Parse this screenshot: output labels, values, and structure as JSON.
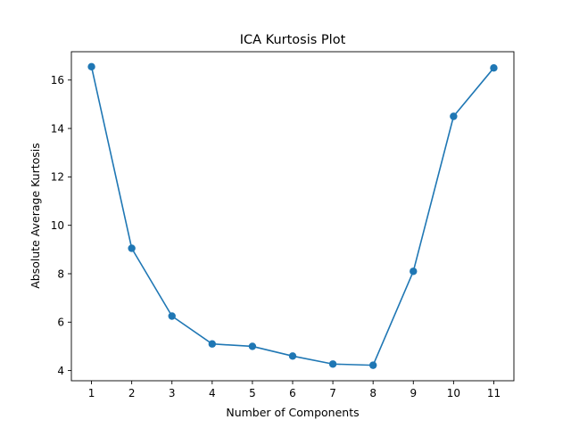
{
  "chart_data": {
    "type": "line",
    "title": "ICA Kurtosis Plot",
    "xlabel": "Number of Components",
    "ylabel": "Absolute Average Kurtosis",
    "x": [
      1,
      2,
      3,
      4,
      5,
      6,
      7,
      8,
      9,
      10,
      11
    ],
    "series": [
      {
        "values": [
          16.55,
          9.05,
          6.25,
          5.1,
          5.0,
          4.6,
          4.27,
          4.22,
          8.1,
          14.5,
          16.5
        ],
        "color": "#1f77b4",
        "marker": "circle"
      }
    ],
    "xticks": [
      "1",
      "2",
      "3",
      "4",
      "5",
      "6",
      "7",
      "8",
      "9",
      "10",
      "11"
    ],
    "yticks": [
      "4",
      "6",
      "8",
      "10",
      "12",
      "14",
      "16"
    ],
    "xlim": [
      0.5,
      11.5
    ],
    "ylim": [
      3.58,
      17.17
    ],
    "grid": false,
    "legend": "none"
  }
}
